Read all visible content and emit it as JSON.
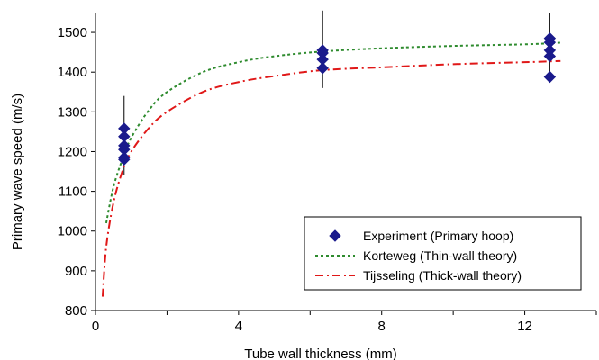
{
  "chart_data": {
    "type": "scatter",
    "xlabel": "Tube wall thickness (mm)",
    "ylabel": "Primary wave speed (m/s)",
    "xlim": [
      0,
      14
    ],
    "ylim": [
      800,
      1550
    ],
    "xticks": [
      0,
      4,
      8,
      12
    ],
    "yticks": [
      800,
      900,
      1000,
      1100,
      1200,
      1300,
      1400,
      1500
    ],
    "grid": false,
    "legend_position": "bottom-right",
    "series": [
      {
        "name": "Experiment (Primary hoop)",
        "kind": "points",
        "marker": "diamond",
        "color": "#1a1a8c",
        "x": [
          0.8,
          0.8,
          0.8,
          0.8,
          0.8,
          0.8,
          6.35,
          6.35,
          6.35,
          6.35,
          12.7,
          12.7,
          12.7,
          12.7,
          12.7
        ],
        "y": [
          1258,
          1238,
          1215,
          1205,
          1185,
          1180,
          1455,
          1432,
          1410,
          1448,
          1485,
          1475,
          1455,
          1440,
          1388
        ],
        "error_bars": [
          {
            "x": 0.8,
            "low": 1140,
            "high": 1340
          },
          {
            "x": 6.35,
            "low": 1360,
            "high": 1555
          },
          {
            "x": 12.7,
            "low": 1380,
            "high": 1550
          }
        ]
      },
      {
        "name": "Korteweg (Thin-wall theory)",
        "kind": "line",
        "dash": "dotted",
        "color": "#2e8b2e",
        "x": [
          0.3,
          0.5,
          0.75,
          1.0,
          1.5,
          2.0,
          3.0,
          4.0,
          5.0,
          6.35,
          8.0,
          10.0,
          12.0,
          13.0
        ],
        "y": [
          1020,
          1110,
          1180,
          1235,
          1305,
          1350,
          1400,
          1425,
          1440,
          1452,
          1460,
          1466,
          1470,
          1474
        ]
      },
      {
        "name": "Tijsseling (Thick-wall theory)",
        "kind": "line",
        "dash": "dash-dot",
        "color": "#e01818",
        "x": [
          0.2,
          0.3,
          0.5,
          0.75,
          1.0,
          1.5,
          2.0,
          3.0,
          4.0,
          5.0,
          6.35,
          8.0,
          10.0,
          12.0,
          13.0
        ],
        "y": [
          835,
          960,
          1070,
          1150,
          1200,
          1260,
          1300,
          1350,
          1375,
          1390,
          1405,
          1412,
          1420,
          1425,
          1428
        ]
      }
    ]
  }
}
